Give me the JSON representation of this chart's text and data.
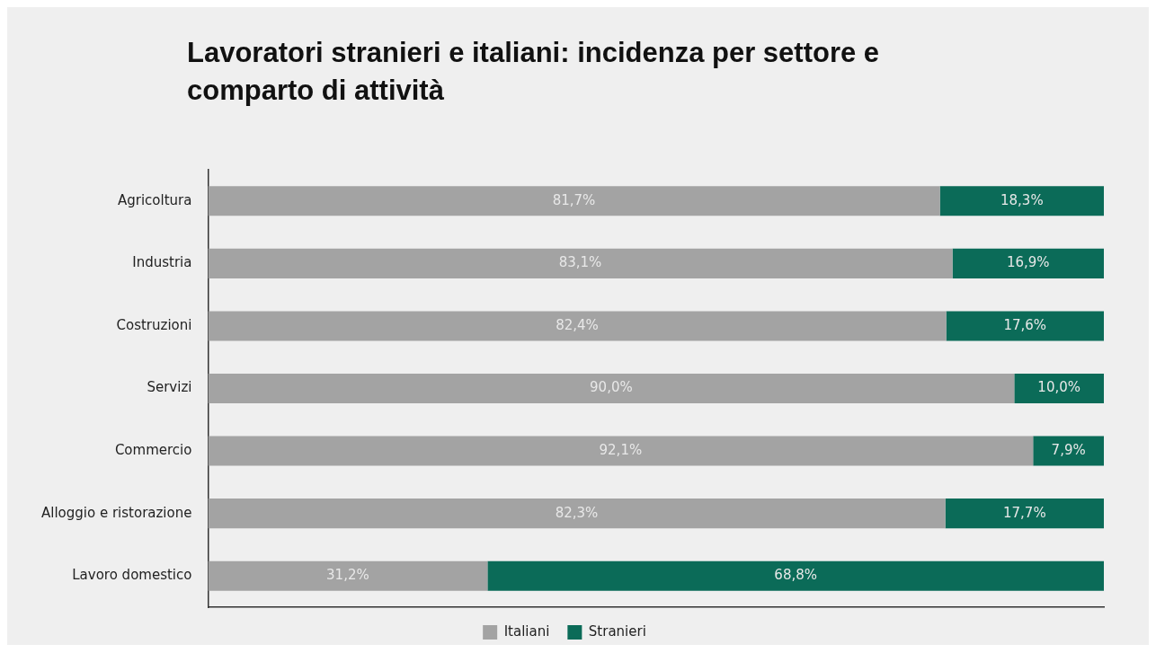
{
  "chart_data": {
    "type": "bar",
    "title": "Lavoratori stranieri e italiani: incidenza per settore e comparto di attività",
    "orientation": "horizontal",
    "stacked": true,
    "categories": [
      "Agricoltura",
      "Industria",
      "Costruzioni",
      "Servizi",
      "Commercio",
      "Alloggio e ristorazione",
      "Lavoro domestico"
    ],
    "series": [
      {
        "name": "Italiani",
        "color": "#a3a3a3",
        "values": [
          81.7,
          83.1,
          82.4,
          90.0,
          92.1,
          82.3,
          31.2
        ],
        "value_labels": [
          "81,7%",
          "83,1%",
          "82,4%",
          "90,0%",
          "92,1%",
          "82,3%",
          "31,2%"
        ]
      },
      {
        "name": "Stranieri",
        "color": "#0b6b58",
        "values": [
          18.3,
          16.9,
          17.6,
          10.0,
          7.9,
          17.7,
          68.8
        ],
        "value_labels": [
          "18,3%",
          "16,9%",
          "17,6%",
          "10,0%",
          "7,9%",
          "17,7%",
          "68,8%"
        ]
      }
    ],
    "legend": "bottom",
    "grid": false,
    "tick_labels": "y"
  }
}
